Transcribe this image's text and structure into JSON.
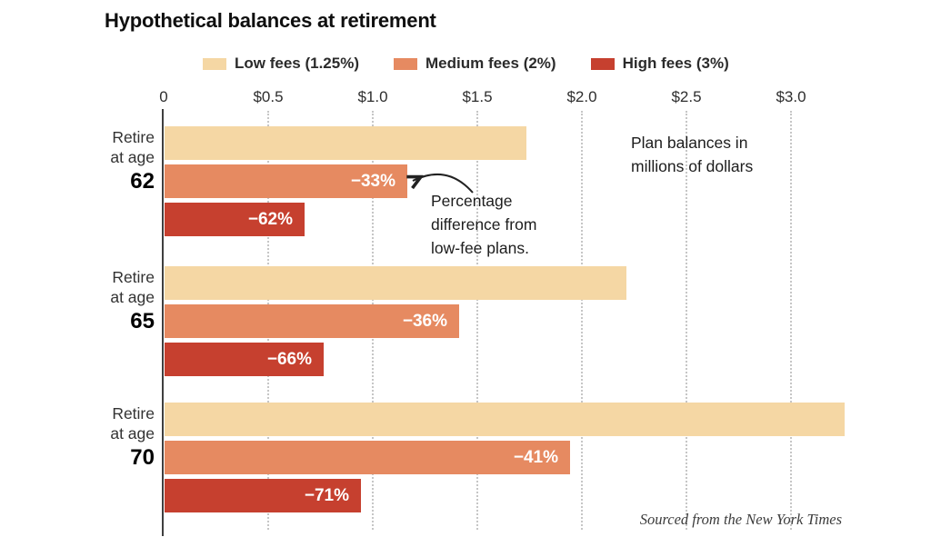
{
  "chart_data": {
    "type": "bar",
    "orientation": "horizontal",
    "title": "Hypothetical balances at retirement",
    "unit_label_lines": [
      "Plan balances in",
      "millions of dollars"
    ],
    "xlabel": "Plan balances in millions of dollars",
    "x_axis": {
      "tick_labels": [
        "0",
        "$0.5",
        "$1.0",
        "$1.5",
        "$2.0",
        "$2.5",
        "$3.0"
      ],
      "tick_values": [
        0,
        0.5,
        1.0,
        1.5,
        2.0,
        2.5,
        3.0
      ],
      "min": 0,
      "max": 3.0,
      "gridlines": "dotted-vertical"
    },
    "legend": [
      {
        "label": "Low fees (1.25%)",
        "color": "#F5D7A4"
      },
      {
        "label": "Medium fees (2%)",
        "color": "#E68A61"
      },
      {
        "label": "High fees (3%)",
        "color": "#C6402F"
      }
    ],
    "groups": [
      {
        "label_lines": [
          "Retire",
          "at age"
        ],
        "age": "62",
        "bars": [
          {
            "series": "Low fees (1.25%)",
            "value": 1.73,
            "pct_label": ""
          },
          {
            "series": "Medium fees (2%)",
            "value": 1.16,
            "pct_label": "−33%"
          },
          {
            "series": "High fees (3%)",
            "value": 0.67,
            "pct_label": "−62%"
          }
        ]
      },
      {
        "label_lines": [
          "Retire",
          "at age"
        ],
        "age": "65",
        "bars": [
          {
            "series": "Low fees (1.25%)",
            "value": 2.21,
            "pct_label": ""
          },
          {
            "series": "Medium fees (2%)",
            "value": 1.41,
            "pct_label": "−36%"
          },
          {
            "series": "High fees (3%)",
            "value": 0.76,
            "pct_label": "−66%"
          }
        ]
      },
      {
        "label_lines": [
          "Retire",
          "at age"
        ],
        "age": "70",
        "bars": [
          {
            "series": "Low fees (1.25%)",
            "value": 3.25,
            "pct_label": ""
          },
          {
            "series": "Medium fees (2%)",
            "value": 1.94,
            "pct_label": "−41%"
          },
          {
            "series": "High fees (3%)",
            "value": 0.94,
            "pct_label": "−71%"
          }
        ]
      }
    ],
    "annotation": {
      "lines": [
        "Percentage",
        "difference from",
        "low-fee plans."
      ],
      "points_to": "medium-fees bar, age 62"
    },
    "source": "Sourced from the New York Times"
  }
}
